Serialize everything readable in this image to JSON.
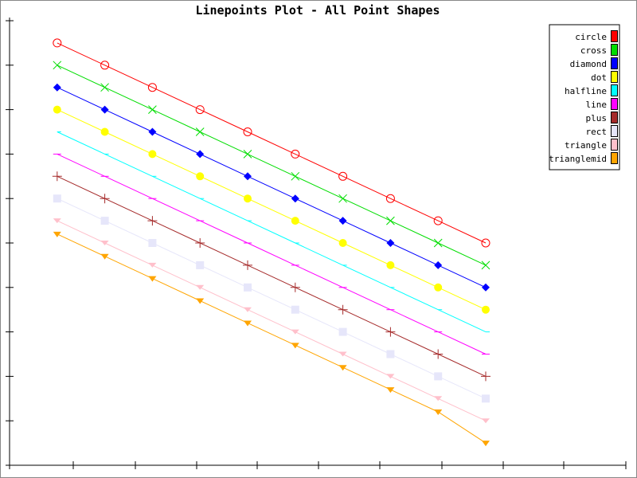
{
  "chart_data": {
    "type": "line",
    "title": "Linepoints Plot - All Point Shapes",
    "xlabel": "",
    "ylabel": "",
    "xlim": [
      0,
      10
    ],
    "ylim": [
      0,
      10
    ],
    "x": [
      1,
      2,
      3,
      4,
      5,
      6,
      7,
      8,
      9,
      10
    ],
    "legend_position": "top-right",
    "grid": false,
    "series": [
      {
        "name": "circle",
        "shape": "circle",
        "color": "#ff0000",
        "values": [
          9.5,
          9,
          8.5,
          8,
          7.5,
          7,
          6.5,
          6,
          5.5,
          5
        ]
      },
      {
        "name": "cross",
        "shape": "cross",
        "color": "#00dd00",
        "values": [
          9,
          8.5,
          8,
          7.5,
          7,
          6.5,
          6,
          5.5,
          5,
          4.5
        ]
      },
      {
        "name": "diamond",
        "shape": "diamond",
        "color": "#0000ff",
        "values": [
          8.5,
          8,
          7.5,
          7,
          6.5,
          6,
          5.5,
          5,
          4.5,
          4
        ]
      },
      {
        "name": "dot",
        "shape": "dot",
        "color": "#ffff00",
        "values": [
          8,
          7.5,
          7,
          6.5,
          6,
          5.5,
          5,
          4.5,
          4,
          3.5
        ]
      },
      {
        "name": "halfline",
        "shape": "halfline",
        "color": "#00ffff",
        "values": [
          7.5,
          7,
          6.5,
          6,
          5.5,
          5,
          4.5,
          4,
          3.5,
          3
        ]
      },
      {
        "name": "line",
        "shape": "line",
        "color": "#ff00ff",
        "values": [
          7,
          6.5,
          6,
          5.5,
          5,
          4.5,
          4,
          3.5,
          3,
          2.5
        ]
      },
      {
        "name": "plus",
        "shape": "plus",
        "color": "#a52a2a",
        "values": [
          6.5,
          6,
          5.5,
          5,
          4.5,
          4,
          3.5,
          3,
          2.5,
          2
        ]
      },
      {
        "name": "rect",
        "shape": "rect",
        "color": "#e6e6fa",
        "values": [
          6,
          5.5,
          5,
          4.5,
          4,
          3.5,
          3,
          2.5,
          2,
          1.5
        ]
      },
      {
        "name": "triangle",
        "shape": "triangle",
        "color": "#ffc0cb",
        "values": [
          5.5,
          5,
          4.5,
          4,
          3.5,
          3,
          2.5,
          2,
          1.5,
          1
        ]
      },
      {
        "name": "trianglemid",
        "shape": "trianglemid",
        "color": "#ffa500",
        "values": [
          5.2,
          4.7,
          4.2,
          3.7,
          3.2,
          2.7,
          2.2,
          1.7,
          1.2,
          0.5
        ]
      }
    ]
  }
}
